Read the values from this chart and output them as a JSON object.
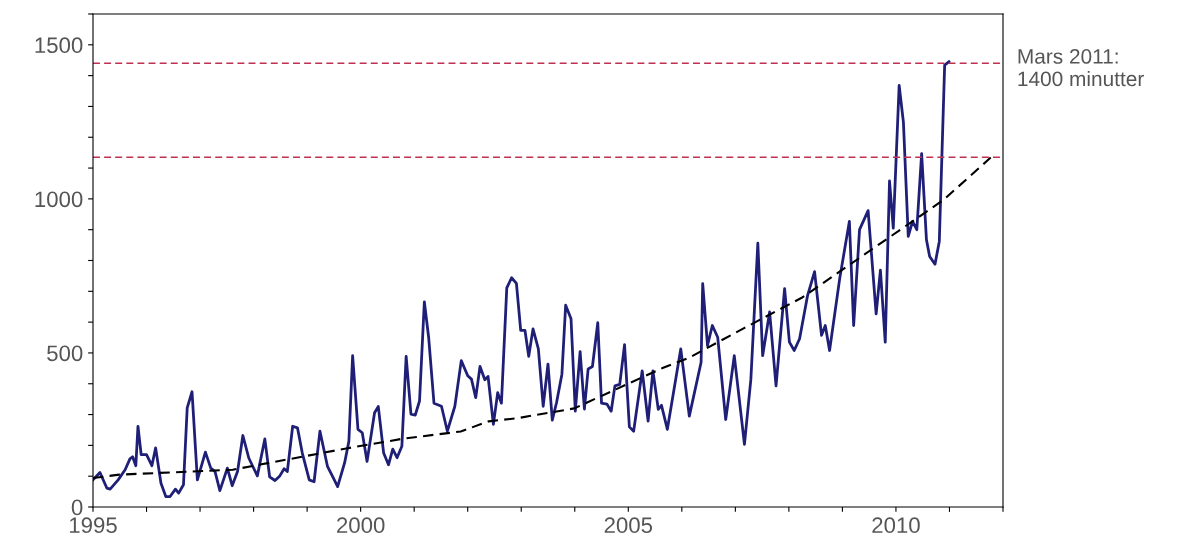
{
  "chart_data": {
    "type": "line",
    "xlim": [
      1995,
      2012
    ],
    "ylim": [
      0,
      1600
    ],
    "xticks": [
      1995,
      {
        "value": 1996,
        "label": null
      },
      {
        "value": 1997,
        "label": null
      },
      {
        "value": 1998,
        "label": null
      },
      {
        "value": 1999,
        "label": null
      },
      2000,
      {
        "value": 2001,
        "label": null
      },
      {
        "value": 2002,
        "label": null
      },
      {
        "value": 2003,
        "label": null
      },
      {
        "value": 2004,
        "label": null
      },
      2005,
      {
        "value": 2006,
        "label": null
      },
      {
        "value": 2007,
        "label": null
      },
      {
        "value": 2008,
        "label": null
      },
      {
        "value": 2009,
        "label": null
      },
      2010,
      {
        "value": 2011,
        "label": null
      },
      {
        "value": 2012,
        "label": null
      }
    ],
    "yticks": [
      0,
      {
        "value": 100,
        "label": null
      },
      {
        "value": 200,
        "label": null
      },
      {
        "value": 300,
        "label": null
      },
      {
        "value": 400,
        "label": null
      },
      500,
      {
        "value": 600,
        "label": null
      },
      {
        "value": 700,
        "label": null
      },
      {
        "value": 800,
        "label": null
      },
      {
        "value": 900,
        "label": null
      },
      1000,
      {
        "value": 1100,
        "label": null
      },
      {
        "value": 1200,
        "label": null
      },
      {
        "value": 1300,
        "label": null
      },
      {
        "value": 1400,
        "label": null
      },
      1500,
      {
        "value": 1600,
        "label": null
      }
    ],
    "grid": false,
    "legend": false,
    "annotations": [
      "Mars 2011:\n1400 minutter"
    ],
    "series": [
      {
        "color": "#1f1f78",
        "line_style": "solid",
        "x": [
          1995.0,
          1995.13,
          1995.26,
          1995.32,
          1995.47,
          1995.6,
          1995.69,
          1995.74,
          1995.8,
          1995.84,
          1995.9,
          1996.0,
          1996.1,
          1996.17,
          1996.27,
          1996.36,
          1996.44,
          1996.54,
          1996.6,
          1996.69,
          1996.76,
          1996.85,
          1996.95,
          1997.1,
          1997.2,
          1997.28,
          1997.37,
          1997.51,
          1997.6,
          1997.7,
          1997.8,
          1997.91,
          1998.07,
          1998.21,
          1998.3,
          1998.4,
          1998.49,
          1998.57,
          1998.63,
          1998.73,
          1998.82,
          1998.91,
          1999.04,
          1999.13,
          1999.24,
          1999.38,
          1999.48,
          1999.57,
          1999.7,
          1999.78,
          1999.85,
          1999.95,
          2000.03,
          2000.12,
          2000.26,
          2000.33,
          2000.43,
          2000.52,
          2000.6,
          2000.68,
          2000.77,
          2000.85,
          2000.94,
          2001.02,
          2001.1,
          2001.19,
          2001.27,
          2001.37,
          2001.51,
          2001.62,
          2001.76,
          2001.88,
          2002.0,
          2002.07,
          2002.15,
          2002.23,
          2002.32,
          2002.38,
          2002.48,
          2002.56,
          2002.63,
          2002.73,
          2002.82,
          2002.91,
          2002.99,
          2003.07,
          2003.14,
          2003.22,
          2003.32,
          2003.41,
          2003.5,
          2003.58,
          2003.66,
          2003.76,
          2003.83,
          2003.93,
          2004.01,
          2004.1,
          2004.18,
          2004.25,
          2004.33,
          2004.43,
          2004.5,
          2004.6,
          2004.68,
          2004.75,
          2004.84,
          2004.93,
          2005.02,
          2005.1,
          2005.26,
          2005.37,
          2005.46,
          2005.56,
          2005.62,
          2005.73,
          2005.98,
          2006.14,
          2006.36,
          2006.39,
          2006.48,
          2006.57,
          2006.67,
          2006.82,
          2006.98,
          2007.17,
          2007.29,
          2007.42,
          2007.51,
          2007.64,
          2007.76,
          2007.92,
          2008.01,
          2008.1,
          2008.2,
          2008.35,
          2008.48,
          2008.61,
          2008.68,
          2008.76,
          2008.95,
          2009.13,
          2009.21,
          2009.32,
          2009.48,
          2009.63,
          2009.71,
          2009.8,
          2009.88,
          2009.95,
          2010.06,
          2010.14,
          2010.23,
          2010.31,
          2010.39,
          2010.48,
          2010.57,
          2010.63,
          2010.73,
          2010.81,
          2010.91,
          2010.99
        ],
        "values": [
          88,
          112,
          61,
          58,
          88,
          121,
          156,
          163,
          134,
          262,
          170,
          170,
          134,
          192,
          77,
          34,
          34,
          58,
          45,
          72,
          322,
          374,
          88,
          178,
          126,
          115,
          53,
          126,
          69,
          115,
          232,
          159,
          101,
          221,
          98,
          86,
          101,
          124,
          115,
          262,
          257,
          175,
          88,
          82,
          246,
          132,
          98,
          66,
          143,
          213,
          491,
          252,
          241,
          148,
          306,
          326,
          175,
          137,
          188,
          160,
          197,
          489,
          301,
          298,
          344,
          666,
          551,
          337,
          327,
          246,
          327,
          475,
          426,
          415,
          355,
          456,
          413,
          424,
          268,
          371,
          337,
          711,
          744,
          726,
          573,
          573,
          489,
          578,
          513,
          327,
          464,
          282,
          339,
          431,
          655,
          611,
          311,
          504,
          318,
          448,
          456,
          598,
          337,
          334,
          311,
          393,
          398,
          527,
          260,
          246,
          442,
          279,
          442,
          317,
          330,
          252,
          513,
          295,
          470,
          725,
          524,
          589,
          551,
          284,
          491,
          203,
          415,
          856,
          491,
          633,
          393,
          709,
          535,
          508,
          546,
          687,
          764,
          557,
          589,
          508,
          742,
          927,
          589,
          900,
          962,
          627,
          769,
          535,
          1058,
          905,
          1368,
          1248,
          878,
          927,
          900,
          1147,
          867,
          813,
          788,
          862,
          1434,
          1445
        ]
      },
      {
        "color": "#000000",
        "line_style": "dashed",
        "x": [
          1995.0,
          1995.49,
          1997.61,
          1999.73,
          2000.8,
          2001.87,
          2002.39,
          2002.92,
          2003.99,
          2005.64,
          2006.13,
          2007.18,
          2008.25,
          2010.89,
          2011.77
        ],
        "values": [
          94,
          105,
          121,
          190,
          222,
          245,
          278,
          288,
          320,
          451,
          484,
          582,
          680,
          997,
          1134
        ]
      }
    ],
    "ref_lines": [
      {
        "axis": "y",
        "value": 1440,
        "label": null,
        "color": "#c03050",
        "line_style": "dashed"
      },
      {
        "axis": "y",
        "value": 1135,
        "label": null,
        "color": "#c03050",
        "line_style": "dashed"
      }
    ]
  }
}
